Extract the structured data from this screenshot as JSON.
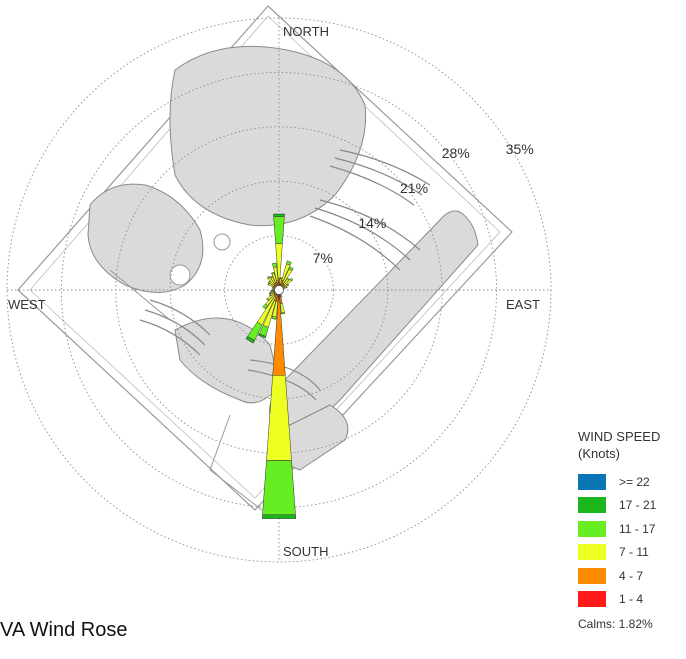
{
  "page": {
    "title": "VA Wind Rose"
  },
  "legend": {
    "title": "WIND SPEED",
    "units": "(Knots)",
    "calms": "Calms: 1.82%",
    "items": [
      {
        "label": ">= 22",
        "color": "#0a76b6"
      },
      {
        "label": "17 - 21",
        "color": "#1cb51c"
      },
      {
        "label": "11 - 17",
        "color": "#66ee22"
      },
      {
        "label": "7 - 11",
        "color": "#eeff22"
      },
      {
        "label": "4 - 7",
        "color": "#ff8c00"
      },
      {
        "label": "1 - 4",
        "color": "#ff1a1a"
      }
    ]
  },
  "chart_data": {
    "type": "wind-rose",
    "direction_labels": {
      "north": "NORTH",
      "east": "EAST",
      "south": "SOUTH",
      "west": "WEST"
    },
    "radial_axis": {
      "unit": "%",
      "max": 35,
      "ticks": [
        7,
        14,
        21,
        28,
        35
      ],
      "tick_labels": [
        "7%",
        "14%",
        "21%",
        "28%",
        "35%"
      ]
    },
    "grid": true,
    "speed_bins": [
      "1 - 4",
      "4 - 7",
      "7 - 11",
      "11 - 17",
      "17 - 21",
      ">= 22"
    ],
    "calms_percent": 1.82,
    "sectors": [
      {
        "direction": 0,
        "cumulative": [
          0.2,
          1.5,
          6.0,
          9.5,
          9.8,
          9.8
        ]
      },
      {
        "direction": 10,
        "cumulative": [
          0.2,
          0.8,
          1.5,
          1.6,
          1.6,
          1.6
        ]
      },
      {
        "direction": 20,
        "cumulative": [
          0.3,
          1.3,
          3.5,
          3.9,
          3.9,
          3.9
        ]
      },
      {
        "direction": 30,
        "cumulative": [
          0.3,
          1.0,
          3.0,
          3.3,
          3.3,
          3.3
        ]
      },
      {
        "direction": 40,
        "cumulative": [
          0.3,
          1.0,
          1.8,
          1.9,
          1.9,
          1.9
        ]
      },
      {
        "direction": 50,
        "cumulative": [
          0.3,
          0.9,
          2.0,
          2.2,
          2.2,
          2.2
        ]
      },
      {
        "direction": 60,
        "cumulative": [
          0.3,
          0.8,
          1.3,
          1.4,
          1.4,
          1.4
        ]
      },
      {
        "direction": 70,
        "cumulative": [
          0.2,
          0.6,
          1.0,
          1.1,
          1.1,
          1.1
        ]
      },
      {
        "direction": 80,
        "cumulative": [
          0.2,
          0.4,
          0.6,
          0.6,
          0.6,
          0.6
        ]
      },
      {
        "direction": 90,
        "cumulative": [
          0.2,
          0.3,
          0.5,
          0.5,
          0.5,
          0.5
        ]
      },
      {
        "direction": 100,
        "cumulative": [
          0.2,
          0.3,
          0.4,
          0.4,
          0.4,
          0.4
        ]
      },
      {
        "direction": 110,
        "cumulative": [
          0.2,
          0.3,
          0.4,
          0.4,
          0.4,
          0.4
        ]
      },
      {
        "direction": 120,
        "cumulative": [
          0.2,
          0.3,
          0.4,
          0.4,
          0.4,
          0.4
        ]
      },
      {
        "direction": 130,
        "cumulative": [
          0.2,
          0.3,
          0.4,
          0.4,
          0.4,
          0.4
        ]
      },
      {
        "direction": 140,
        "cumulative": [
          0.2,
          0.3,
          0.4,
          0.4,
          0.4,
          0.4
        ]
      },
      {
        "direction": 150,
        "cumulative": [
          0.2,
          0.4,
          0.6,
          0.6,
          0.6,
          0.6
        ]
      },
      {
        "direction": 160,
        "cumulative": [
          0.3,
          0.6,
          1.0,
          1.0,
          1.0,
          1.0
        ]
      },
      {
        "direction": 170,
        "cumulative": [
          0.8,
          1.8,
          3.0,
          3.1,
          3.1,
          3.1
        ]
      },
      {
        "direction": 180,
        "cumulative": [
          1.2,
          11.0,
          22.0,
          29.0,
          29.5,
          29.5
        ]
      },
      {
        "direction": 190,
        "cumulative": [
          0.5,
          1.5,
          3.5,
          3.8,
          3.8,
          3.8
        ]
      },
      {
        "direction": 200,
        "cumulative": [
          0.4,
          1.5,
          5.0,
          6.2,
          6.4,
          6.4
        ]
      },
      {
        "direction": 210,
        "cumulative": [
          0.3,
          1.0,
          5.0,
          7.2,
          7.6,
          7.6
        ]
      },
      {
        "direction": 220,
        "cumulative": [
          0.3,
          0.9,
          2.5,
          3.0,
          3.0,
          3.0
        ]
      },
      {
        "direction": 230,
        "cumulative": [
          0.3,
          0.8,
          1.8,
          2.0,
          2.0,
          2.0
        ]
      },
      {
        "direction": 240,
        "cumulative": [
          0.3,
          0.7,
          1.3,
          1.4,
          1.4,
          1.4
        ]
      },
      {
        "direction": 250,
        "cumulative": [
          0.3,
          0.7,
          1.2,
          1.3,
          1.3,
          1.3
        ]
      },
      {
        "direction": 260,
        "cumulative": [
          0.3,
          0.6,
          1.0,
          1.1,
          1.1,
          1.1
        ]
      },
      {
        "direction": 270,
        "cumulative": [
          0.2,
          0.5,
          0.8,
          0.8,
          0.8,
          0.8
        ]
      },
      {
        "direction": 280,
        "cumulative": [
          0.2,
          0.5,
          0.8,
          0.8,
          0.8,
          0.8
        ]
      },
      {
        "direction": 290,
        "cumulative": [
          0.2,
          0.5,
          0.9,
          0.9,
          0.9,
          0.9
        ]
      },
      {
        "direction": 300,
        "cumulative": [
          0.3,
          0.8,
          1.5,
          1.6,
          1.6,
          1.6
        ]
      },
      {
        "direction": 310,
        "cumulative": [
          0.3,
          0.8,
          1.6,
          1.7,
          1.7,
          1.7
        ]
      },
      {
        "direction": 320,
        "cumulative": [
          0.3,
          1.0,
          2.0,
          2.2,
          2.2,
          2.2
        ]
      },
      {
        "direction": 330,
        "cumulative": [
          0.3,
          1.0,
          1.9,
          2.0,
          2.0,
          2.0
        ]
      },
      {
        "direction": 340,
        "cumulative": [
          0.3,
          1.0,
          2.2,
          2.4,
          2.4,
          2.4
        ]
      },
      {
        "direction": 350,
        "cumulative": [
          0.3,
          1.2,
          3.0,
          3.5,
          3.5,
          3.5
        ]
      }
    ]
  }
}
